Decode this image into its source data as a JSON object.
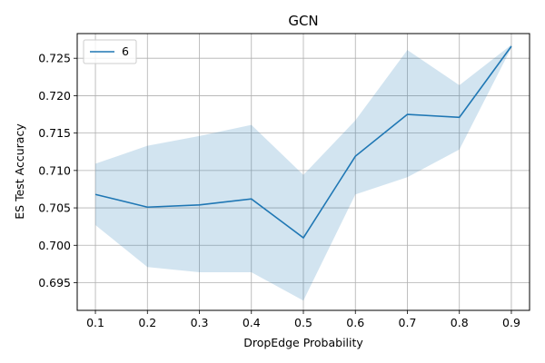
{
  "chart_data": {
    "type": "line",
    "title": "GCN",
    "xlabel": "DropEdge Probability",
    "ylabel": "ES Test Accuracy",
    "xlim": [
      0.065,
      0.935
    ],
    "ylim": [
      0.6913,
      0.7283
    ],
    "xticks": [
      0.1,
      0.2,
      0.3,
      0.4,
      0.5,
      0.6,
      0.7,
      0.8,
      0.9
    ],
    "xtick_labels": [
      "0.1",
      "0.2",
      "0.3",
      "0.4",
      "0.5",
      "0.6",
      "0.7",
      "0.8",
      "0.9"
    ],
    "yticks": [
      0.695,
      0.7,
      0.705,
      0.71,
      0.715,
      0.72,
      0.725
    ],
    "ytick_labels": [
      "0.695",
      "0.700",
      "0.705",
      "0.710",
      "0.715",
      "0.720",
      "0.725"
    ],
    "grid": true,
    "legend_position": "top-left",
    "series": [
      {
        "name": "6",
        "color": "#1f77b4",
        "band_color": "#1f77b4",
        "x": [
          0.1,
          0.2,
          0.3,
          0.4,
          0.5,
          0.6,
          0.7,
          0.8,
          0.9
        ],
        "y": [
          0.7068,
          0.7051,
          0.7054,
          0.7062,
          0.701,
          0.7119,
          0.7175,
          0.7171,
          0.7266
        ],
        "lower": [
          0.7027,
          0.6971,
          0.6964,
          0.6964,
          0.6926,
          0.7068,
          0.7091,
          0.7128,
          0.7264
        ],
        "upper": [
          0.7109,
          0.7133,
          0.7146,
          0.7161,
          0.7094,
          0.7167,
          0.7261,
          0.7214,
          0.7268
        ]
      }
    ]
  }
}
